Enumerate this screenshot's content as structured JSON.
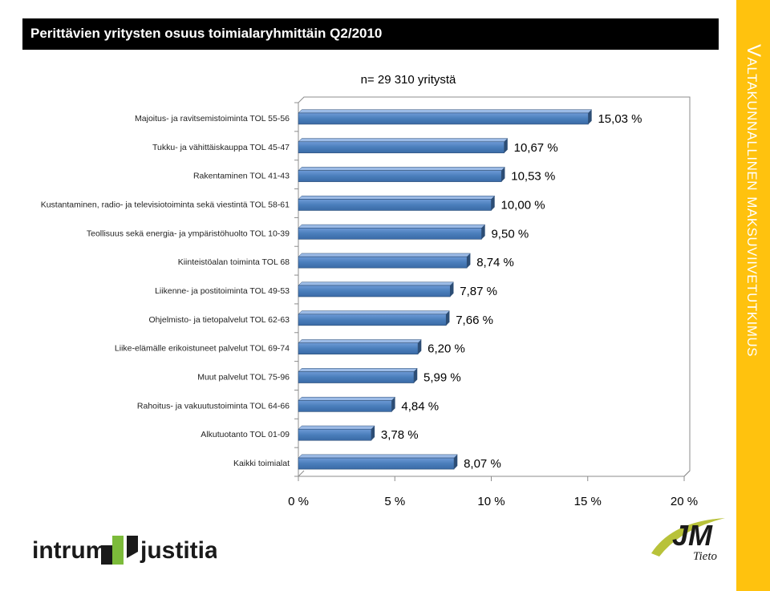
{
  "header": {
    "title": "Perittävien yritysten osuus toimialaryhmittäin Q2/2010"
  },
  "sidebar": {
    "text": "Valtakunnallinen maksuviivetutkimus"
  },
  "chart_data": {
    "type": "bar",
    "orientation": "horizontal",
    "title": "",
    "annotation": "n= 29 310 yritystä",
    "categories": [
      "Majoitus- ja ravitsemistoiminta TOL 55-56",
      "Tukku- ja vähittäiskauppa TOL 45-47",
      "Rakentaminen TOL 41-43",
      "Kustantaminen, radio- ja televisiotoiminta sekä viestintä TOL 58-61",
      "Teollisuus sekä energia- ja ympäristöhuolto TOL 10-39",
      "Kiinteistöalan toiminta TOL 68",
      "Liikenne- ja postitoiminta TOL 49-53",
      "Ohjelmisto- ja tietopalvelut TOL 62-63",
      "Liike-elämälle erikoistuneet palvelut TOL 69-74",
      "Muut palvelut TOL 75-96",
      "Rahoitus- ja vakuutustoiminta TOL 64-66",
      "Alkutuotanto TOL 01-09",
      "Kaikki toimialat"
    ],
    "values": [
      15.03,
      10.67,
      10.53,
      10.0,
      9.5,
      8.74,
      7.87,
      7.66,
      6.2,
      5.99,
      4.84,
      3.78,
      8.07
    ],
    "value_labels": [
      "15,03 %",
      "10,67 %",
      "10,53 %",
      "10,00 %",
      "9,50 %",
      "8,74 %",
      "7,87 %",
      "7,66 %",
      "6,20 %",
      "5,99 %",
      "4,84 %",
      "3,78 %",
      "8,07 %"
    ],
    "xlim": [
      0,
      20
    ],
    "xticks": [
      0,
      5,
      10,
      15,
      20
    ],
    "xtick_labels": [
      "0 %",
      "5 %",
      "10 %",
      "15 %",
      "20 %"
    ],
    "xlabel": "",
    "ylabel": "",
    "grid": false,
    "legend": "none",
    "bar_color": "#4a7ebb",
    "bar_edge_color": "#2c4d75"
  },
  "logos": {
    "intrum": {
      "word_left": "intrum",
      "word_right": "justitia",
      "color": "#1a1a1a",
      "accent": "#7cbb3a"
    },
    "jm": {
      "word": "JM",
      "sub": "Tieto",
      "color": "#1a1a1a",
      "accent": "#b8c23a"
    }
  }
}
